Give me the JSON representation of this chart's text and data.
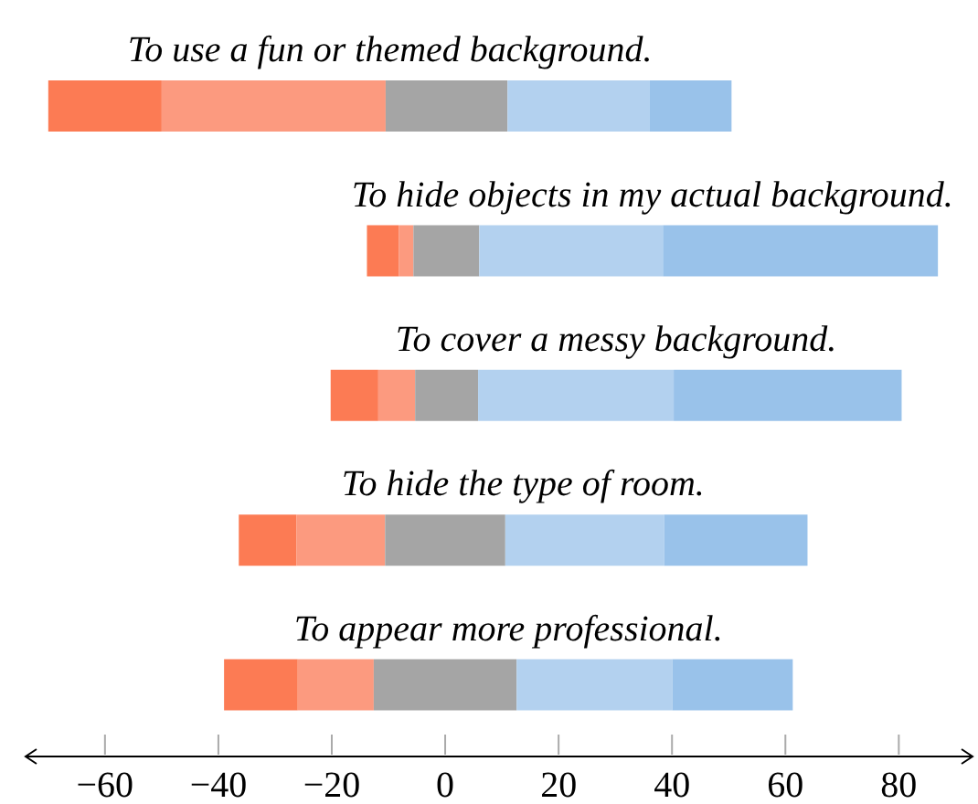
{
  "chart_data": {
    "type": "bar",
    "orientation": "horizontal",
    "categories": [
      "To use a fun or themed background.",
      "To hide objects in my actual background.",
      "To cover a messy background.",
      "To hide the type of room.",
      "To appear more professional."
    ],
    "series": [
      {
        "color": "#fc7b54",
        "base": [
          -70,
          -13.8,
          -20.2,
          -36.4,
          -39
        ],
        "values": [
          20,
          5.6,
          8.4,
          10.2,
          13
        ]
      },
      {
        "color": "#fc9a7f",
        "base": [
          -50,
          -8.2,
          -11.8,
          -26.2,
          -26
        ],
        "values": [
          39.5,
          2.6,
          6.5,
          15.6,
          13.4
        ]
      },
      {
        "color": "#a5a5a5",
        "base": [
          -10.5,
          -5.6,
          -5.3,
          -10.6,
          -12.6
        ],
        "values": [
          21.5,
          11.6,
          11.1,
          21.2,
          25.2
        ]
      },
      {
        "color": "#b3d1ef",
        "base": [
          11,
          6,
          5.8,
          10.6,
          12.6
        ],
        "values": [
          25,
          32.4,
          34.5,
          28,
          27.5
        ]
      },
      {
        "color": "#99c2ea",
        "base": [
          36,
          38.4,
          40.3,
          38.6,
          40.1
        ],
        "values": [
          14.5,
          48.5,
          40.2,
          25.3,
          21.2
        ]
      }
    ],
    "xlim": [
      -74,
      93
    ],
    "xticks": [
      {
        "value": -60,
        "label": "−60"
      },
      {
        "value": -40,
        "label": "−40"
      },
      {
        "value": -20,
        "label": "−20"
      },
      0,
      20,
      40,
      60,
      80
    ]
  }
}
